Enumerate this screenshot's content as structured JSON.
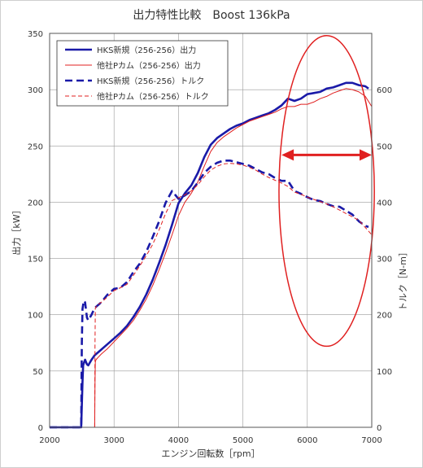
{
  "chart_data": {
    "type": "line",
    "title": "出力特性比較　Boost 136kPa",
    "xlabel": "エンジン回転数［rpm］",
    "ylabel_left": "出力［kW］",
    "ylabel_right": "トルク［N-m］",
    "xlim": [
      2000,
      7000
    ],
    "ylim_left": [
      0,
      350
    ],
    "ylim_right": [
      0,
      700
    ],
    "x_ticks": [
      2000,
      3000,
      4000,
      5000,
      6000,
      7000
    ],
    "y_ticks_left": [
      0,
      50,
      100,
      150,
      200,
      250,
      300,
      350
    ],
    "y_ticks_right": [
      0,
      100,
      200,
      300,
      400,
      500,
      600
    ],
    "grid": true,
    "legend_position": "top-left",
    "series": [
      {
        "name": "HKS新規（256-256）出力",
        "axis": "left",
        "color": "#1a1aa8",
        "style": "solid-thick",
        "x": [
          2000,
          2490,
          2500,
          2510,
          2520,
          2530,
          2550,
          2580,
          2600,
          2650,
          2700,
          2800,
          2900,
          3000,
          3100,
          3200,
          3300,
          3400,
          3500,
          3600,
          3700,
          3800,
          3900,
          4000,
          4100,
          4200,
          4300,
          4400,
          4500,
          4600,
          4700,
          4800,
          4900,
          5000,
          5100,
          5200,
          5300,
          5400,
          5500,
          5600,
          5700,
          5800,
          5900,
          6000,
          6100,
          6200,
          6300,
          6400,
          6500,
          6600,
          6700,
          6800,
          6900,
          6950
        ],
        "y": [
          0,
          0,
          20,
          40,
          55,
          57,
          60,
          56,
          55,
          60,
          64,
          69,
          74,
          79,
          84,
          90,
          98,
          107,
          118,
          131,
          146,
          162,
          180,
          199,
          208,
          215,
          226,
          240,
          251,
          257,
          261,
          265,
          268,
          270,
          273,
          275,
          277,
          279,
          282,
          286,
          292,
          290,
          292,
          296,
          297,
          298,
          301,
          302,
          304,
          306,
          306,
          304,
          303,
          301
        ]
      },
      {
        "name": "他社Pカム（256-256）出力",
        "axis": "left",
        "color": "#e02020",
        "style": "solid-thin",
        "x": [
          2000,
          2700,
          2705,
          2710,
          2720,
          2750,
          2800,
          2900,
          3000,
          3100,
          3200,
          3300,
          3400,
          3500,
          3600,
          3700,
          3800,
          3900,
          4000,
          4100,
          4200,
          4300,
          4400,
          4500,
          4600,
          4700,
          4800,
          4900,
          5000,
          5100,
          5200,
          5300,
          5400,
          5500,
          5600,
          5700,
          5800,
          5900,
          6000,
          6100,
          6200,
          6300,
          6400,
          6500,
          6600,
          6700,
          6800,
          6900,
          7000
        ],
        "y": [
          0,
          0,
          40,
          58,
          60,
          62,
          65,
          70,
          76,
          82,
          88,
          95,
          104,
          114,
          126,
          140,
          155,
          171,
          188,
          200,
          208,
          218,
          232,
          245,
          253,
          258,
          262,
          266,
          269,
          272,
          274,
          276,
          278,
          280,
          283,
          285,
          285,
          287,
          287,
          289,
          292,
          294,
          297,
          299,
          301,
          300,
          298,
          294,
          285
        ]
      },
      {
        "name": "HKS新規（256-256）トルク",
        "axis": "right",
        "color": "#1a1aa8",
        "style": "dashed-thick",
        "x": [
          2000,
          2490,
          2500,
          2510,
          2530,
          2550,
          2580,
          2600,
          2650,
          2700,
          2800,
          2900,
          3000,
          3100,
          3200,
          3300,
          3400,
          3500,
          3600,
          3700,
          3800,
          3900,
          4000,
          4100,
          4200,
          4300,
          4400,
          4500,
          4600,
          4700,
          4800,
          4900,
          5000,
          5100,
          5200,
          5300,
          5400,
          5500,
          5600,
          5700,
          5800,
          5900,
          6000,
          6100,
          6200,
          6300,
          6400,
          6500,
          6600,
          6700,
          6800,
          6900,
          6950
        ],
        "y": [
          0,
          0,
          150,
          210,
          225,
          222,
          195,
          190,
          200,
          212,
          222,
          236,
          246,
          248,
          258,
          276,
          291,
          312,
          338,
          366,
          399,
          420,
          406,
          412,
          420,
          435,
          452,
          463,
          470,
          474,
          474,
          471,
          468,
          465,
          459,
          453,
          450,
          443,
          438,
          438,
          420,
          415,
          409,
          404,
          402,
          397,
          393,
          392,
          385,
          378,
          366,
          358,
          356
        ]
      },
      {
        "name": "他社Pカム（256-256）トルク",
        "axis": "right",
        "color": "#e02020",
        "style": "dashed-thin",
        "x": [
          2000,
          2700,
          2705,
          2710,
          2720,
          2750,
          2800,
          2900,
          3000,
          3100,
          3200,
          3300,
          3400,
          3500,
          3600,
          3700,
          3800,
          3900,
          4000,
          4100,
          4200,
          4300,
          4400,
          4500,
          4600,
          4700,
          4800,
          4900,
          5000,
          5100,
          5200,
          5300,
          5400,
          5500,
          5600,
          5700,
          5800,
          5900,
          6000,
          6100,
          6200,
          6300,
          6400,
          6500,
          6600,
          6700,
          6800,
          6900,
          7000
        ],
        "y": [
          0,
          0,
          150,
          212,
          214,
          218,
          222,
          232,
          243,
          248,
          254,
          270,
          287,
          305,
          325,
          351,
          380,
          403,
          408,
          413,
          420,
          431,
          445,
          457,
          464,
          468,
          469,
          468,
          466,
          462,
          457,
          450,
          444,
          439,
          434,
          428,
          418,
          414,
          409,
          405,
          401,
          397,
          392,
          386,
          380,
          374,
          368,
          355,
          342
        ]
      }
    ],
    "annotations": [
      {
        "type": "ellipse",
        "color": "#e02020",
        "cx": 6300,
        "cy_left": 210,
        "rx": 740,
        "ry_left": 138
      },
      {
        "type": "double-arrow",
        "color": "#e02020",
        "x1": 5600,
        "x2": 7000,
        "y_left": 242
      }
    ]
  }
}
